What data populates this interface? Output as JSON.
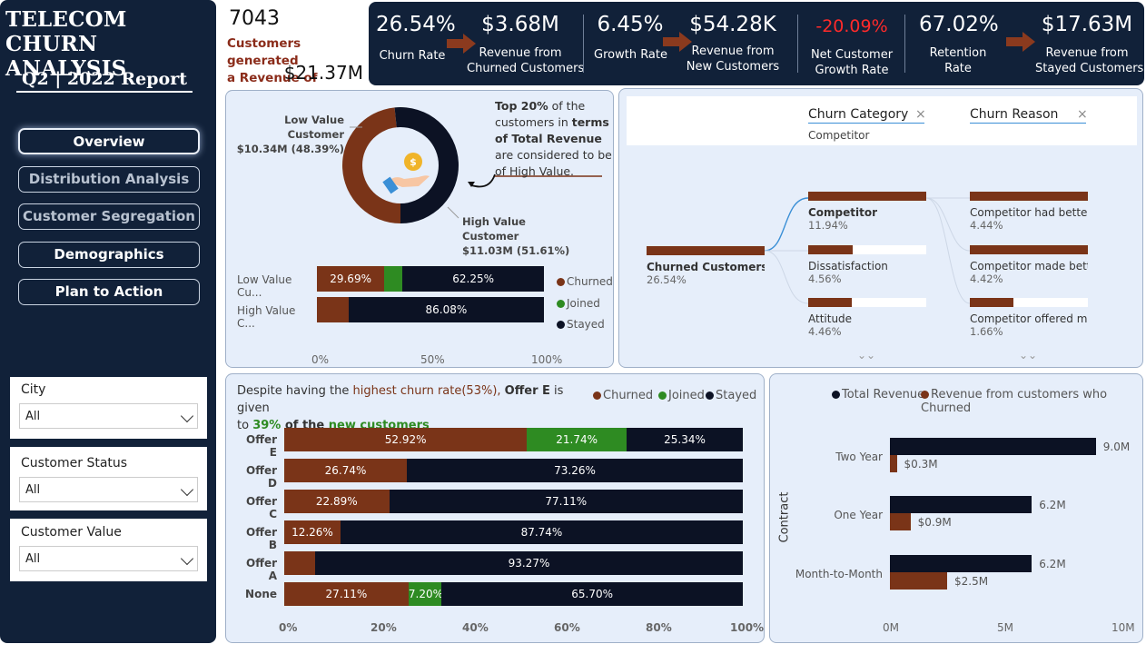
{
  "sidebar": {
    "brand_line1": "TELECOM",
    "brand_line2": "CHURN ANALYSIS",
    "report_title": "Q2 | 2022 Report",
    "nav": [
      "Overview",
      "Distribution Analysis",
      "Customer Segregation",
      "Demographics",
      "Plan to Action"
    ],
    "slicers": [
      {
        "title": "City",
        "value": "All"
      },
      {
        "title": "Customer Status",
        "value": "All"
      },
      {
        "title": "Customer Value",
        "value": "All"
      }
    ]
  },
  "summary": {
    "customer_count": "7043",
    "line1": "Customers generated",
    "line2": "a Revenue of",
    "revenue": "$21.37M"
  },
  "kpis": [
    {
      "value": "26.54%",
      "label1": "Churn Rate",
      "label2": ""
    },
    {
      "value": "$3.68M",
      "label1": "Revenue from",
      "label2": "Churned Customers"
    },
    {
      "value": "6.45%",
      "label1": "Growth Rate",
      "label2": ""
    },
    {
      "value": "$54.28K",
      "label1": "Revenue from",
      "label2": "New Customers"
    },
    {
      "value": "-20.09%",
      "label1": "Net Customer",
      "label2": "Growth Rate"
    },
    {
      "value": "67.02%",
      "label1": "Retention",
      "label2": "Rate"
    },
    {
      "value": "$17.63M",
      "label1": "Revenue from",
      "label2": "Stayed Customers"
    }
  ],
  "value_panel": {
    "low_label": "Low Value Customer",
    "low_value": "$10.34M (48.39%)",
    "high_label": "High Value Customer",
    "high_value": "$11.03M (51.61%)",
    "note_p1": "Top 20%",
    "note_p2": " of the customers in ",
    "note_p3": "terms of Total Revenue",
    "note_p4": " are considered to be of High Value.",
    "coin_symbol": "$",
    "rows": [
      {
        "label": "Low Value Cu...",
        "churned": 29.69,
        "joined": 8.06,
        "stayed": 62.25,
        "churned_lbl": "29.69%",
        "joined_lbl": "",
        "stayed_lbl": "62.25%"
      },
      {
        "label": "High Value C...",
        "churned": 13.92,
        "joined": 0,
        "stayed": 86.08,
        "churned_lbl": "",
        "joined_lbl": "",
        "stayed_lbl": "86.08%"
      }
    ],
    "legend": [
      "Churned",
      "Joined",
      "Stayed"
    ],
    "ticks": [
      "0%",
      "50%",
      "100%"
    ]
  },
  "decomp": {
    "filter1_title": "Churn Category",
    "filter1_value": "Competitor",
    "filter2_title": "Churn Reason",
    "clear_icon": "×",
    "root": {
      "name": "Churned Customers",
      "value": "26.54%"
    },
    "level1": [
      {
        "name": "Competitor",
        "value": "11.94%",
        "fill": 1.0
      },
      {
        "name": "Dissatisfaction",
        "value": "4.56%",
        "fill": 0.38
      },
      {
        "name": "Attitude",
        "value": "4.46%",
        "fill": 0.37
      }
    ],
    "level2": [
      {
        "name": "Competitor had better...",
        "value": "4.44%",
        "fill": 1.0
      },
      {
        "name": "Competitor made bett...",
        "value": "4.42%",
        "fill": 1.0
      },
      {
        "name": "Competitor offered m...",
        "value": "1.66%",
        "fill": 0.37
      }
    ],
    "expand1": "⌄⌄",
    "expand2": "⌄⌄"
  },
  "offer_panel": {
    "text_p1": "Despite having the ",
    "text_p2": "highest churn rate",
    "text_p3": "(53%), ",
    "text_p4": "Offer E",
    "text_p5": " is given",
    "text_p6": "to ",
    "text_p7": "39%",
    "text_p8": " of the ",
    "text_p9": "new customers",
    "legend": [
      "Churned",
      "Joined",
      "Stayed"
    ],
    "ticks": [
      "0%",
      "20%",
      "40%",
      "60%",
      "80%",
      "100%"
    ]
  },
  "contract_panel": {
    "legend": [
      "Total Revenue",
      "Revenue from customers who Churned"
    ],
    "axis_title": "Contract",
    "ticks": [
      "0M",
      "5M",
      "10M"
    ]
  },
  "colors": {
    "churned": "#7a3418",
    "joined": "#2e8b22",
    "stayed": "#0c1224",
    "navy": "#112139",
    "accent_red": "#ff2a2a"
  },
  "chart_data": [
    {
      "type": "bar",
      "title": "",
      "stacked": "100%",
      "orientation": "horizontal",
      "categories": [
        "Low Value Cu...",
        "High Value C..."
      ],
      "series": [
        {
          "name": "Churned",
          "values": [
            29.69,
            13.92
          ]
        },
        {
          "name": "Joined",
          "values": [
            8.06,
            0
          ]
        },
        {
          "name": "Stayed",
          "values": [
            62.25,
            86.08
          ]
        }
      ],
      "xlim": [
        0,
        100
      ]
    },
    {
      "type": "bar",
      "title": "",
      "stacked": "100%",
      "orientation": "horizontal",
      "categories": [
        "Offer E",
        "Offer D",
        "Offer C",
        "Offer B",
        "Offer A",
        "None"
      ],
      "series": [
        {
          "name": "Churned",
          "values": [
            52.92,
            26.74,
            22.89,
            12.26,
            6.73,
            27.11
          ]
        },
        {
          "name": "Joined",
          "values": [
            21.74,
            0,
            0,
            0,
            0,
            7.2
          ]
        },
        {
          "name": "Stayed",
          "values": [
            25.34,
            73.26,
            77.11,
            87.74,
            93.27,
            65.7
          ]
        }
      ],
      "labels": [
        [
          "52.92%",
          "21.74%",
          "25.34%"
        ],
        [
          "26.74%",
          "",
          "73.26%"
        ],
        [
          "22.89%",
          "",
          "77.11%"
        ],
        [
          "12.26%",
          "",
          "87.74%"
        ],
        [
          "",
          "",
          "93.27%"
        ],
        [
          "27.11%",
          "7.20%",
          "65.70%"
        ]
      ],
      "xlim": [
        0,
        100
      ]
    },
    {
      "type": "bar",
      "title": "",
      "orientation": "horizontal",
      "ylabel": "Contract",
      "categories": [
        "Two Year",
        "One Year",
        "Month-to-Month"
      ],
      "series": [
        {
          "name": "Total Revenue",
          "values": [
            9.0,
            6.2,
            6.2
          ],
          "labels": [
            "9.0M",
            "6.2M",
            "6.2M"
          ]
        },
        {
          "name": "Revenue from customers who Churned",
          "values": [
            0.3,
            0.9,
            2.5
          ],
          "labels": [
            "$0.3M",
            "$0.9M",
            "$2.5M"
          ]
        }
      ],
      "xlim": [
        0,
        10
      ]
    },
    {
      "type": "pie",
      "title": "",
      "donut": true,
      "categories": [
        "Low Value Customer",
        "High Value Customer"
      ],
      "values": [
        48.39,
        51.61
      ]
    }
  ]
}
